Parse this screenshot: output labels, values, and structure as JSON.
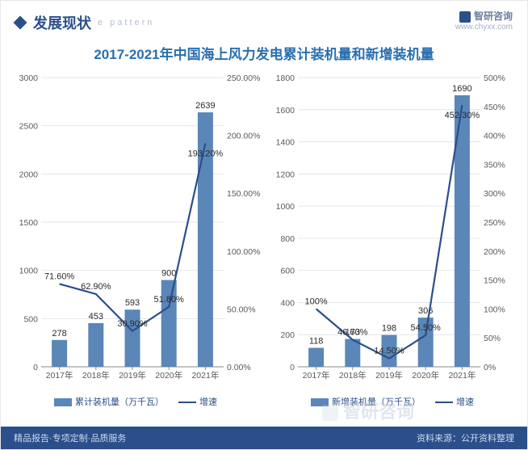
{
  "header": {
    "title_cn": "发展现状",
    "title_en": "e pattern",
    "brand_name": "智研咨询",
    "brand_url": "www.chyxx.com"
  },
  "main_title": "2017-2021年中国海上风力发电累计装机量和新增装机量",
  "colors": {
    "bar": "#5a86b8",
    "line": "#2a4f8a",
    "grid": "#e3e6ec",
    "axis_text": "#5a5a5a",
    "title": "#2a6fb0",
    "header": "#2a4f8a",
    "bg": "#ffffff"
  },
  "chart_left": {
    "type": "bar+line",
    "categories": [
      "2017年",
      "2018年",
      "2019年",
      "2020年",
      "2021年"
    ],
    "bar_series_name": "累计装机量（万千瓦）",
    "bar_values": [
      278,
      453,
      593,
      900,
      2639
    ],
    "bar_y_min": 0,
    "bar_y_max": 3000,
    "bar_y_step": 500,
    "line_series_name": "增速",
    "line_values_pct": [
      71.6,
      62.9,
      30.9,
      51.8,
      193.2
    ],
    "line_labels": [
      "71.60%",
      "62.90%",
      "30.90%",
      "51.80%",
      "193.20%"
    ],
    "line_y_min": 0,
    "line_y_max": 250,
    "line_y_step": 50,
    "line_y_labels": [
      "0.00%",
      "50.00%",
      "100.00%",
      "150.00%",
      "200.00%",
      "250.00%"
    ],
    "bar_width": 0.42
  },
  "chart_right": {
    "type": "bar+line",
    "categories": [
      "2017年",
      "2018年",
      "2019年",
      "2020年",
      "2021年"
    ],
    "bar_series_name": "新增装机量（万千瓦）",
    "bar_values": [
      118,
      173,
      198,
      306,
      1690
    ],
    "bar_y_min": 0,
    "bar_y_max": 1800,
    "bar_y_step": 200,
    "line_series_name": "增速",
    "line_values_pct": [
      100,
      46.6,
      14.5,
      54.5,
      452.3
    ],
    "line_labels": [
      "100%",
      "46.60%",
      "14.50%",
      "54.50%",
      "452.30%"
    ],
    "line_y_min": 0,
    "line_y_max": 500,
    "line_y_step": 50,
    "line_y_labels": [
      "0%",
      "50%",
      "100%",
      "150%",
      "200%",
      "250%",
      "300%",
      "350%",
      "400%",
      "450%",
      "500%"
    ],
    "bar_width": 0.42
  },
  "legend": {
    "line_label": "增速"
  },
  "footer": {
    "left": "精品报告·专项定制·品质服务",
    "right": "资料来源：公开资料整理"
  },
  "watermark": "智研咨询"
}
